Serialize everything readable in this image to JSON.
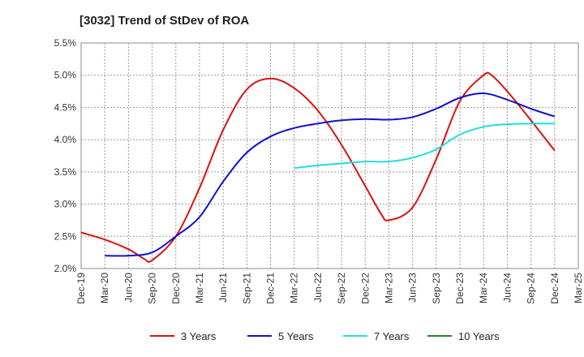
{
  "chart_data": {
    "type": "line",
    "title": "[3032]  Trend of StDev of ROA",
    "x_ticks": [
      "Dec-19",
      "Mar-20",
      "Jun-20",
      "Sep-20",
      "Dec-20",
      "Mar-21",
      "Jun-21",
      "Sep-21",
      "Dec-21",
      "Mar-22",
      "Jun-22",
      "Sep-22",
      "Dec-22",
      "Mar-23",
      "Jun-23",
      "Sep-23",
      "Dec-23",
      "Mar-24",
      "Jun-24",
      "Sep-24",
      "Dec-24",
      "Mar-25"
    ],
    "y_ticks": [
      "2.0%",
      "2.5%",
      "3.0%",
      "3.5%",
      "4.0%",
      "4.5%",
      "5.0%",
      "5.5%"
    ],
    "ylim": [
      2.0,
      5.5
    ],
    "grid": true,
    "legend_position": "bottom",
    "series": [
      {
        "name": "3 Years",
        "color": "#dd1111",
        "x": [
          "Dec-19",
          "Mar-20",
          "Jun-20",
          "Aug-20",
          "Sep-20",
          "Dec-20",
          "Mar-21",
          "Jun-21",
          "Sep-21",
          "Dec-21",
          "Mar-22",
          "Jun-22",
          "Sep-22",
          "Dec-22",
          "Feb-23",
          "Mar-23",
          "Jun-23",
          "Sep-23",
          "Dec-23",
          "Mar-24",
          "Apr-24",
          "Jun-24",
          "Sep-24",
          "Dec-24"
        ],
        "values": [
          2.56,
          2.45,
          2.3,
          2.15,
          2.13,
          2.5,
          3.25,
          4.15,
          4.78,
          4.95,
          4.8,
          4.45,
          3.92,
          3.28,
          2.85,
          2.75,
          2.95,
          3.7,
          4.6,
          5.0,
          5.0,
          4.75,
          4.3,
          3.83
        ]
      },
      {
        "name": "5 Years",
        "color": "#1111cc",
        "x": [
          "Mar-20",
          "Jun-20",
          "Sep-20",
          "Dec-20",
          "Mar-21",
          "Jun-21",
          "Sep-21",
          "Dec-21",
          "Mar-22",
          "Jun-22",
          "Sep-22",
          "Dec-22",
          "Mar-23",
          "Jun-23",
          "Sep-23",
          "Dec-23",
          "Mar-24",
          "Jun-24",
          "Sep-24",
          "Dec-24"
        ],
        "values": [
          2.2,
          2.2,
          2.25,
          2.5,
          2.8,
          3.35,
          3.8,
          4.05,
          4.18,
          4.25,
          4.3,
          4.32,
          4.31,
          4.35,
          4.48,
          4.65,
          4.72,
          4.62,
          4.48,
          4.36
        ]
      },
      {
        "name": "7 Years",
        "color": "#22dddd",
        "x": [
          "Mar-22",
          "Jun-22",
          "Sep-22",
          "Dec-22",
          "Mar-23",
          "Jun-23",
          "Sep-23",
          "Dec-23",
          "Mar-24",
          "Jun-24",
          "Sep-24",
          "Dec-24"
        ],
        "values": [
          3.56,
          3.6,
          3.63,
          3.66,
          3.66,
          3.72,
          3.85,
          4.08,
          4.2,
          4.24,
          4.25,
          4.25
        ]
      },
      {
        "name": "10 Years",
        "color": "#228822",
        "x": [],
        "values": []
      }
    ]
  }
}
